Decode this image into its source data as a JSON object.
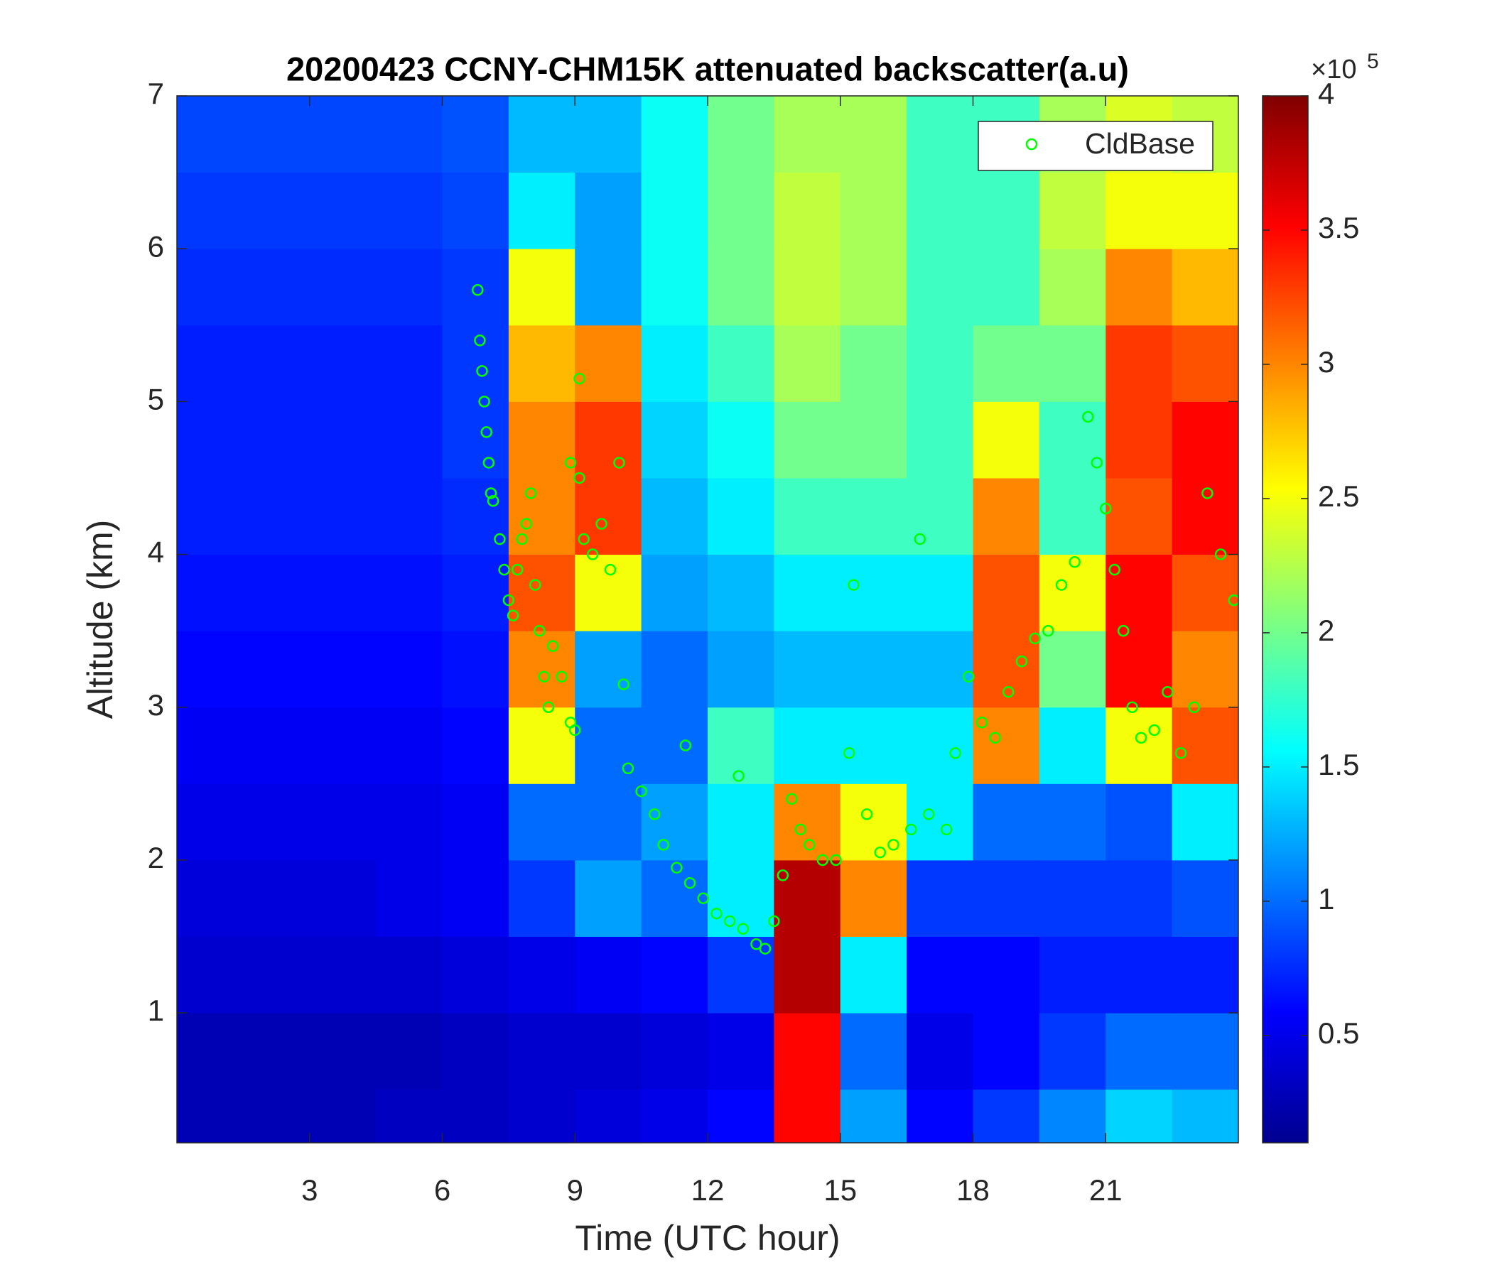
{
  "chart_data": {
    "type": "heatmap",
    "title": "20200423 CCNY-CHM15K attenuated backscatter(a.u)",
    "x_label": "Time (UTC hour)",
    "y_label": "Altitude (km)",
    "xlim": [
      0,
      24
    ],
    "xticks": [
      3,
      6,
      9,
      12,
      15,
      18,
      21
    ],
    "ylim": [
      0.15,
      7
    ],
    "yticks": [
      1,
      2,
      3,
      4,
      5,
      6,
      7
    ],
    "x_bins": [
      0,
      1.5,
      3,
      4.5,
      6,
      7.5,
      9,
      10.5,
      12,
      13.5,
      15,
      16.5,
      18,
      19.5,
      21,
      22.5,
      24
    ],
    "y_bins": [
      0.15,
      0.5,
      1,
      1.5,
      2,
      2.5,
      3,
      3.5,
      4,
      4.5,
      5,
      5.5,
      6,
      6.5,
      7
    ],
    "z": [
      [
        0.3,
        0.3,
        0.3,
        0.35,
        0.35,
        0.4,
        0.45,
        0.5,
        0.6,
        3.5,
        1.2,
        0.6,
        0.8,
        1.1,
        1.4,
        1.3
      ],
      [
        0.3,
        0.3,
        0.3,
        0.3,
        0.35,
        0.4,
        0.4,
        0.45,
        0.5,
        3.5,
        1.0,
        0.5,
        0.6,
        0.8,
        1.0,
        1.0
      ],
      [
        0.4,
        0.4,
        0.4,
        0.4,
        0.45,
        0.5,
        0.55,
        0.6,
        0.8,
        3.8,
        1.5,
        0.6,
        0.6,
        0.7,
        0.7,
        0.7
      ],
      [
        0.45,
        0.45,
        0.45,
        0.5,
        0.55,
        0.8,
        1.2,
        1.0,
        1.5,
        3.8,
        3.0,
        0.8,
        0.8,
        0.8,
        0.8,
        0.9
      ],
      [
        0.5,
        0.5,
        0.5,
        0.5,
        0.55,
        1.0,
        1.0,
        1.2,
        1.5,
        3.0,
        2.5,
        1.5,
        1.0,
        1.0,
        0.9,
        1.5
      ],
      [
        0.55,
        0.55,
        0.55,
        0.55,
        0.6,
        2.5,
        1.0,
        1.0,
        1.8,
        1.5,
        1.5,
        1.5,
        3.0,
        1.5,
        2.5,
        3.2
      ],
      [
        0.6,
        0.6,
        0.6,
        0.6,
        0.65,
        3.0,
        1.2,
        1.0,
        1.2,
        1.3,
        1.3,
        1.3,
        3.2,
        2.0,
        3.5,
        3.0
      ],
      [
        0.65,
        0.65,
        0.65,
        0.65,
        0.7,
        3.2,
        2.5,
        1.2,
        1.3,
        1.5,
        1.5,
        1.5,
        3.2,
        2.5,
        3.5,
        3.2
      ],
      [
        0.7,
        0.7,
        0.7,
        0.7,
        0.75,
        3.0,
        3.3,
        1.3,
        1.5,
        1.8,
        1.8,
        1.8,
        3.0,
        1.8,
        3.2,
        3.5
      ],
      [
        0.7,
        0.7,
        0.7,
        0.7,
        0.8,
        3.0,
        3.3,
        1.4,
        1.6,
        2.0,
        2.0,
        1.8,
        2.5,
        1.8,
        3.3,
        3.5
      ],
      [
        0.7,
        0.7,
        0.7,
        0.7,
        0.8,
        2.8,
        3.0,
        1.5,
        1.8,
        2.2,
        2.0,
        1.8,
        2.0,
        2.0,
        3.3,
        3.2
      ],
      [
        0.75,
        0.75,
        0.75,
        0.75,
        0.8,
        2.5,
        1.2,
        1.6,
        2.0,
        2.3,
        2.2,
        1.8,
        1.8,
        2.2,
        3.0,
        2.8
      ],
      [
        0.8,
        0.8,
        0.8,
        0.8,
        0.85,
        1.5,
        1.2,
        1.6,
        2.0,
        2.3,
        2.2,
        1.8,
        1.8,
        2.3,
        2.5,
        2.5
      ],
      [
        0.85,
        0.85,
        0.85,
        0.85,
        0.9,
        1.3,
        1.3,
        1.6,
        2.0,
        2.2,
        2.2,
        1.8,
        1.8,
        2.2,
        2.4,
        2.3
      ]
    ],
    "colormap": "jet",
    "zlim": [
      0.1,
      4
    ],
    "zticks": [
      0.5,
      1,
      1.5,
      2,
      2.5,
      3,
      3.5,
      4
    ],
    "colorbar_multiplier": "×10",
    "colorbar_exponent": "5",
    "legend": "northeast",
    "series": [
      {
        "name": "CldBase",
        "type": "scatter",
        "color": "#00ff00",
        "x": [
          6.8,
          6.85,
          6.9,
          6.95,
          7.0,
          7.05,
          7.1,
          7.15,
          7.3,
          7.4,
          7.5,
          7.6,
          7.7,
          7.8,
          7.9,
          8.0,
          8.1,
          8.2,
          8.3,
          8.4,
          8.5,
          8.7,
          8.9,
          9.0,
          8.9,
          9.1,
          9.2,
          9.4,
          9.6,
          9.8,
          10.0,
          9.1,
          10.1,
          10.2,
          10.5,
          10.8,
          11.0,
          11.3,
          11.6,
          11.9,
          12.2,
          12.5,
          12.8,
          13.1,
          13.3,
          13.5,
          13.7,
          13.9,
          14.1,
          14.3,
          14.6,
          14.9,
          15.2,
          15.3,
          15.6,
          15.9,
          16.2,
          16.6,
          17.0,
          17.4,
          17.6,
          17.9,
          18.2,
          18.5,
          18.8,
          19.1,
          19.4,
          19.7,
          20.0,
          20.3,
          20.6,
          20.8,
          21.0,
          21.2,
          21.4,
          21.6,
          21.8,
          22.1,
          22.4,
          22.7,
          23.0,
          23.3,
          23.6,
          23.9,
          16.8,
          12.7,
          11.5
        ],
        "y": [
          5.73,
          5.4,
          5.2,
          5.0,
          4.8,
          4.6,
          4.4,
          4.35,
          4.1,
          3.9,
          3.7,
          3.6,
          3.9,
          4.1,
          4.2,
          4.4,
          3.8,
          3.5,
          3.2,
          3.0,
          3.4,
          3.2,
          2.9,
          2.85,
          4.6,
          4.5,
          4.1,
          4.0,
          4.2,
          3.9,
          4.6,
          5.15,
          3.15,
          2.6,
          2.45,
          2.3,
          2.1,
          1.95,
          1.85,
          1.75,
          1.65,
          1.6,
          1.55,
          1.45,
          1.42,
          1.6,
          1.9,
          2.4,
          2.2,
          2.1,
          2.0,
          2.0,
          2.7,
          3.8,
          2.3,
          2.05,
          2.1,
          2.2,
          2.3,
          2.2,
          2.7,
          3.2,
          2.9,
          2.8,
          3.1,
          3.3,
          3.45,
          3.5,
          3.8,
          3.95,
          4.9,
          4.6,
          4.3,
          3.9,
          3.5,
          3.0,
          2.8,
          2.85,
          3.1,
          2.7,
          3.0,
          4.4,
          4.0,
          3.7,
          4.1,
          2.55,
          2.75
        ]
      }
    ]
  }
}
